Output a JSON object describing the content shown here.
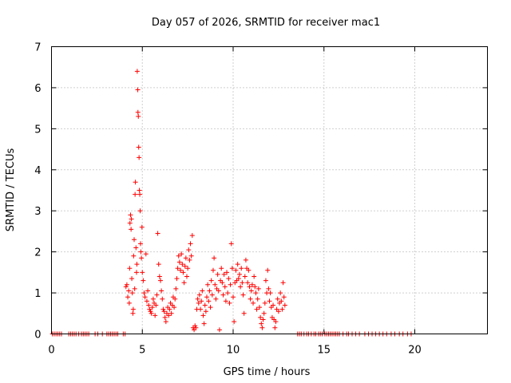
{
  "chart_data": {
    "type": "scatter",
    "title": "Day 057 of 2026, SRMTID for receiver mac1",
    "xlabel": "GPS time / hours",
    "ylabel": "SRMTID / TECUs",
    "xlim": [
      0,
      24
    ],
    "ylim": [
      0,
      7
    ],
    "xticks": [
      0,
      5,
      10,
      15,
      20
    ],
    "xtick_labels": [
      "0",
      "5",
      "10",
      "15",
      "20"
    ],
    "yticks": [
      0,
      1,
      2,
      3,
      4,
      5,
      6,
      7
    ],
    "ytick_labels": [
      "0",
      "1",
      "2",
      "3",
      "4",
      "5",
      "6",
      "7"
    ],
    "grid": true,
    "marker": "+",
    "color": "#ff0000",
    "series": [
      {
        "name": "SRMTID",
        "points": [
          [
            0.05,
            0
          ],
          [
            0.15,
            0
          ],
          [
            0.25,
            0
          ],
          [
            0.35,
            0
          ],
          [
            0.45,
            0
          ],
          [
            0.55,
            0
          ],
          [
            0.95,
            0
          ],
          [
            1.05,
            0
          ],
          [
            1.15,
            0
          ],
          [
            1.25,
            0
          ],
          [
            1.35,
            0
          ],
          [
            1.5,
            0
          ],
          [
            1.65,
            0
          ],
          [
            1.75,
            0
          ],
          [
            1.85,
            0
          ],
          [
            1.95,
            0
          ],
          [
            2.05,
            0
          ],
          [
            2.4,
            0
          ],
          [
            2.55,
            0
          ],
          [
            2.8,
            0
          ],
          [
            3.05,
            0
          ],
          [
            3.15,
            0
          ],
          [
            3.25,
            0
          ],
          [
            3.35,
            0
          ],
          [
            3.45,
            0
          ],
          [
            3.55,
            0
          ],
          [
            3.65,
            0
          ],
          [
            3.95,
            0
          ],
          [
            4.05,
            0
          ],
          [
            4.1,
            1.15
          ],
          [
            4.15,
            1.2
          ],
          [
            4.2,
            0.9
          ],
          [
            4.25,
            1.05
          ],
          [
            4.28,
            0.75
          ],
          [
            4.3,
            1.6
          ],
          [
            4.32,
            2.7
          ],
          [
            4.35,
            2.9
          ],
          [
            4.38,
            2.55
          ],
          [
            4.4,
            2.8
          ],
          [
            4.42,
            1.35
          ],
          [
            4.45,
            1.0
          ],
          [
            4.48,
            0.5
          ],
          [
            4.5,
            0.6
          ],
          [
            4.52,
            1.9
          ],
          [
            4.55,
            2.3
          ],
          [
            4.58,
            1.1
          ],
          [
            4.6,
            3.4
          ],
          [
            4.62,
            3.7
          ],
          [
            4.65,
            2.1
          ],
          [
            4.68,
            1.5
          ],
          [
            4.7,
            1.7
          ],
          [
            4.72,
            6.4
          ],
          [
            4.75,
            5.95
          ],
          [
            4.76,
            5.4
          ],
          [
            4.78,
            5.3
          ],
          [
            4.8,
            4.55
          ],
          [
            4.82,
            4.3
          ],
          [
            4.84,
            3.5
          ],
          [
            4.86,
            3.4
          ],
          [
            4.88,
            3.0
          ],
          [
            4.9,
            2.2
          ],
          [
            4.92,
            2.0
          ],
          [
            4.95,
            1.85
          ],
          [
            4.98,
            2.6
          ],
          [
            5.0,
            1.5
          ],
          [
            5.05,
            1.3
          ],
          [
            5.1,
            1.0
          ],
          [
            5.15,
            0.9
          ],
          [
            5.2,
            1.95
          ],
          [
            5.25,
            0.8
          ],
          [
            5.3,
            1.05
          ],
          [
            5.35,
            0.7
          ],
          [
            5.4,
            0.6
          ],
          [
            5.45,
            0.55
          ],
          [
            5.5,
            0.5
          ],
          [
            5.55,
            0.65
          ],
          [
            5.6,
            0.85
          ],
          [
            5.65,
            0.75
          ],
          [
            5.7,
            0.45
          ],
          [
            5.75,
            0.7
          ],
          [
            5.8,
            0.95
          ],
          [
            5.85,
            2.45
          ],
          [
            5.9,
            1.7
          ],
          [
            5.95,
            1.4
          ],
          [
            6.0,
            1.3
          ],
          [
            6.05,
            1.05
          ],
          [
            6.1,
            0.85
          ],
          [
            6.15,
            0.6
          ],
          [
            6.2,
            0.55
          ],
          [
            6.25,
            0.4
          ],
          [
            6.3,
            0.3
          ],
          [
            6.35,
            0.5
          ],
          [
            6.4,
            0.65
          ],
          [
            6.45,
            0.45
          ],
          [
            6.5,
            0.6
          ],
          [
            6.55,
            0.75
          ],
          [
            6.6,
            0.5
          ],
          [
            6.65,
            0.7
          ],
          [
            6.7,
            0.9
          ],
          [
            6.75,
            0.65
          ],
          [
            6.8,
            0.85
          ],
          [
            6.85,
            1.1
          ],
          [
            6.9,
            1.35
          ],
          [
            6.95,
            1.6
          ],
          [
            7.0,
            1.9
          ],
          [
            7.05,
            1.75
          ],
          [
            7.1,
            1.55
          ],
          [
            7.15,
            1.95
          ],
          [
            7.2,
            1.7
          ],
          [
            7.25,
            1.5
          ],
          [
            7.3,
            1.25
          ],
          [
            7.35,
            1.65
          ],
          [
            7.4,
            1.85
          ],
          [
            7.45,
            1.4
          ],
          [
            7.5,
            1.6
          ],
          [
            7.55,
            2.05
          ],
          [
            7.6,
            1.8
          ],
          [
            7.65,
            2.2
          ],
          [
            7.7,
            1.9
          ],
          [
            7.75,
            2.4
          ],
          [
            7.8,
            0.15
          ],
          [
            7.85,
            0.1
          ],
          [
            7.9,
            0.2
          ],
          [
            7.95,
            0.15
          ],
          [
            8.0,
            0.6
          ],
          [
            8.05,
            0.85
          ],
          [
            8.1,
            0.75
          ],
          [
            8.15,
            0.95
          ],
          [
            8.2,
            0.6
          ],
          [
            8.25,
            0.8
          ],
          [
            8.3,
            1.05
          ],
          [
            8.35,
            0.45
          ],
          [
            8.4,
            0.25
          ],
          [
            8.45,
            0.7
          ],
          [
            8.5,
            0.55
          ],
          [
            8.55,
            0.9
          ],
          [
            8.6,
            1.2
          ],
          [
            8.65,
            0.8
          ],
          [
            8.7,
            1.05
          ],
          [
            8.75,
            0.65
          ],
          [
            8.8,
            1.3
          ],
          [
            8.85,
            0.95
          ],
          [
            8.9,
            1.55
          ],
          [
            8.95,
            1.85
          ],
          [
            9.0,
            1.2
          ],
          [
            9.05,
            0.85
          ],
          [
            9.1,
            1.1
          ],
          [
            9.15,
            1.45
          ],
          [
            9.2,
            1.05
          ],
          [
            9.25,
            0.1
          ],
          [
            9.3,
            1.3
          ],
          [
            9.35,
            1.6
          ],
          [
            9.4,
            1.25
          ],
          [
            9.45,
            0.95
          ],
          [
            9.5,
            1.45
          ],
          [
            9.55,
            1.15
          ],
          [
            9.6,
            0.8
          ],
          [
            9.65,
            1.5
          ],
          [
            9.7,
            1.0
          ],
          [
            9.75,
            1.35
          ],
          [
            9.8,
            0.75
          ],
          [
            9.85,
            1.2
          ],
          [
            9.9,
            2.2
          ],
          [
            9.95,
            1.6
          ],
          [
            10.0,
            0.9
          ],
          [
            10.05,
            0.3
          ],
          [
            10.1,
            1.25
          ],
          [
            10.15,
            1.55
          ],
          [
            10.2,
            1.3
          ],
          [
            10.25,
            1.7
          ],
          [
            10.3,
            1.35
          ],
          [
            10.35,
            1.45
          ],
          [
            10.4,
            1.15
          ],
          [
            10.45,
            1.6
          ],
          [
            10.5,
            1.25
          ],
          [
            10.55,
            0.95
          ],
          [
            10.6,
            0.5
          ],
          [
            10.65,
            1.4
          ],
          [
            10.7,
            1.8
          ],
          [
            10.75,
            1.6
          ],
          [
            10.8,
            1.25
          ],
          [
            10.85,
            1.55
          ],
          [
            10.9,
            1.15
          ],
          [
            10.95,
            0.85
          ],
          [
            11.0,
            1.05
          ],
          [
            11.05,
            1.2
          ],
          [
            11.1,
            0.75
          ],
          [
            11.15,
            1.4
          ],
          [
            11.2,
            1.15
          ],
          [
            11.25,
            1.0
          ],
          [
            11.3,
            0.6
          ],
          [
            11.35,
            0.85
          ],
          [
            11.4,
            1.1
          ],
          [
            11.45,
            0.65
          ],
          [
            11.5,
            0.4
          ],
          [
            11.55,
            0.25
          ],
          [
            11.6,
            0.15
          ],
          [
            11.65,
            0.35
          ],
          [
            11.7,
            0.5
          ],
          [
            11.75,
            0.75
          ],
          [
            11.8,
            1.3
          ],
          [
            11.85,
            1.0
          ],
          [
            11.9,
            1.55
          ],
          [
            11.95,
            1.1
          ],
          [
            12.0,
            0.8
          ],
          [
            12.05,
            1.0
          ],
          [
            12.1,
            0.65
          ],
          [
            12.15,
            0.4
          ],
          [
            12.2,
            0.7
          ],
          [
            12.25,
            0.35
          ],
          [
            12.3,
            0.15
          ],
          [
            12.35,
            0.3
          ],
          [
            12.4,
            0.6
          ],
          [
            12.45,
            0.85
          ],
          [
            12.5,
            0.55
          ],
          [
            12.55,
            0.75
          ],
          [
            12.6,
            1.0
          ],
          [
            12.65,
            0.8
          ],
          [
            12.7,
            0.6
          ],
          [
            12.75,
            1.25
          ],
          [
            12.8,
            0.9
          ],
          [
            12.85,
            0.7
          ],
          [
            13.55,
            0
          ],
          [
            13.65,
            0
          ],
          [
            13.75,
            0
          ],
          [
            13.9,
            0
          ],
          [
            14.05,
            0
          ],
          [
            14.15,
            0
          ],
          [
            14.3,
            0
          ],
          [
            14.45,
            0
          ],
          [
            14.55,
            0
          ],
          [
            14.7,
            0
          ],
          [
            14.8,
            0
          ],
          [
            14.9,
            0
          ],
          [
            15.05,
            0
          ],
          [
            15.15,
            0
          ],
          [
            15.25,
            0
          ],
          [
            15.35,
            0
          ],
          [
            15.45,
            0
          ],
          [
            15.55,
            0
          ],
          [
            15.65,
            0
          ],
          [
            15.75,
            0
          ],
          [
            15.85,
            0
          ],
          [
            16.05,
            0
          ],
          [
            16.25,
            0
          ],
          [
            16.35,
            0
          ],
          [
            16.55,
            0
          ],
          [
            16.75,
            0
          ],
          [
            16.95,
            0
          ],
          [
            17.25,
            0
          ],
          [
            17.45,
            0
          ],
          [
            17.65,
            0
          ],
          [
            17.85,
            0
          ],
          [
            18.05,
            0
          ],
          [
            18.25,
            0
          ],
          [
            18.45,
            0
          ],
          [
            18.7,
            0
          ],
          [
            18.9,
            0
          ],
          [
            19.15,
            0
          ],
          [
            19.35,
            0
          ],
          [
            19.6,
            0
          ],
          [
            19.8,
            0
          ]
        ]
      }
    ]
  }
}
